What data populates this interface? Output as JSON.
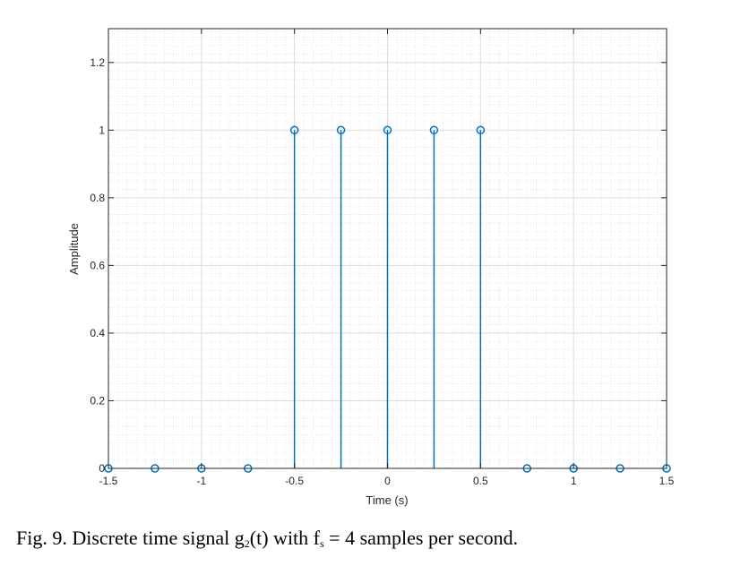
{
  "chart_data": {
    "type": "stem",
    "title": "",
    "xlabel": "Time (s)",
    "ylabel": "Amplitude",
    "xlim": [
      -1.5,
      1.5
    ],
    "ylim": [
      0,
      1.3
    ],
    "x_ticks": [
      -1.5,
      -1,
      -0.5,
      0,
      0.5,
      1,
      1.5
    ],
    "x_tick_labels": [
      "-1.5",
      "-1",
      "-0.5",
      "0",
      "0.5",
      "1",
      "1.5"
    ],
    "y_ticks": [
      0,
      0.2,
      0.4,
      0.6,
      0.8,
      1,
      1.2
    ],
    "y_tick_labels": [
      "0",
      "0.2",
      "0.4",
      "0.6",
      "0.8",
      "1",
      "1.2"
    ],
    "grid": true,
    "minor_grid": true,
    "series": [
      {
        "name": "g2(t) samples",
        "color": "#0072BD",
        "marker": "circle-open",
        "x": [
          -1.5,
          -1.25,
          -1.0,
          -0.75,
          -0.5,
          -0.25,
          0,
          0.25,
          0.5,
          0.75,
          1.0,
          1.25,
          1.5
        ],
        "values": [
          0,
          0,
          0,
          0,
          1,
          1,
          1,
          1,
          1,
          0,
          0,
          0,
          0
        ]
      }
    ]
  },
  "caption": {
    "prefix": "Fig.  9. Discrete time signal g",
    "g_sub": "2",
    "middle": "(t) with f",
    "f_sub": "s",
    "suffix": " = 4 samples per second."
  }
}
